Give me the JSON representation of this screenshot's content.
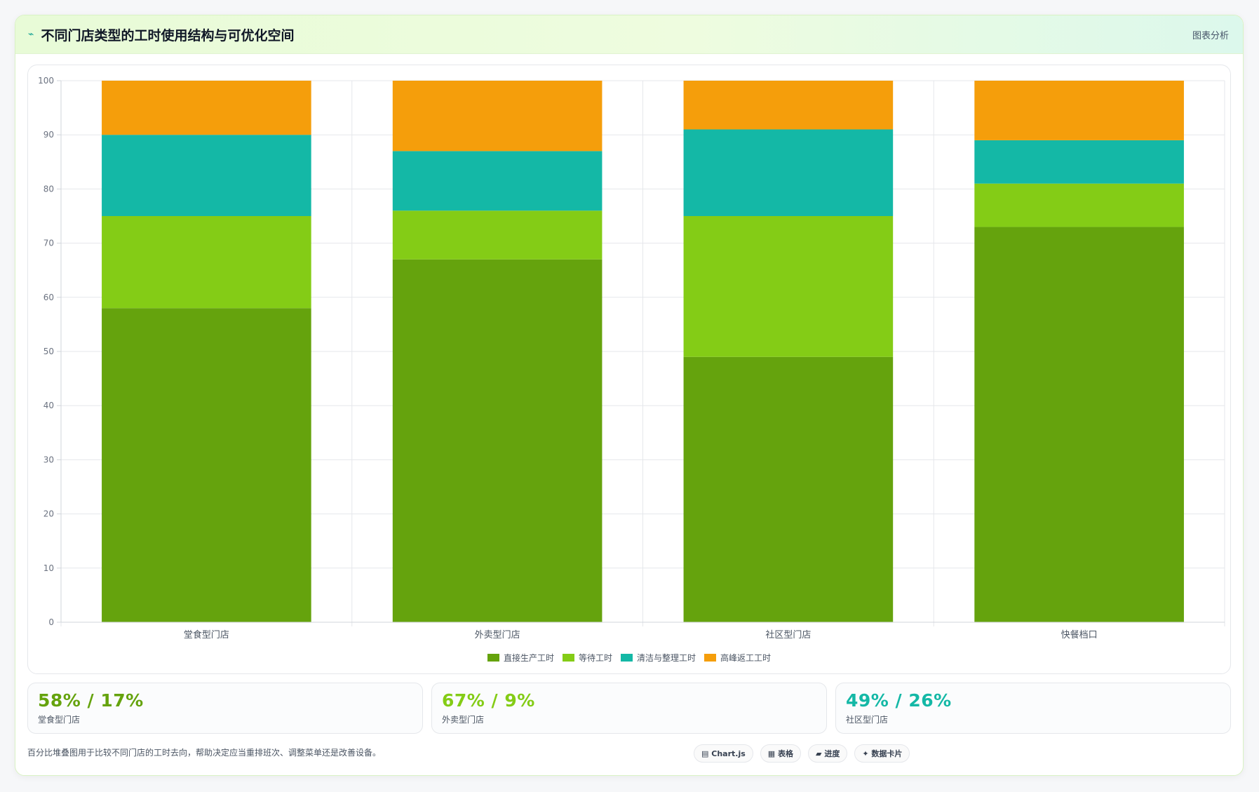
{
  "header": {
    "icon": "trend-icon",
    "icon_glyph": "⌁",
    "title": "不同门店类型的工时使用结构与可优化空间",
    "action_label": "图表分析"
  },
  "chart_data": {
    "type": "bar",
    "stacked": true,
    "categories": [
      "堂食型门店",
      "外卖型门店",
      "社区型门店",
      "快餐档口"
    ],
    "series": [
      {
        "name": "直接生产工时",
        "color": "#65a30d",
        "values": [
          58,
          67,
          49,
          73
        ]
      },
      {
        "name": "等待工时",
        "color": "#84cc16",
        "values": [
          17,
          9,
          26,
          8
        ]
      },
      {
        "name": "清洁与整理工时",
        "color": "#14b8a6",
        "values": [
          15,
          11,
          16,
          8
        ]
      },
      {
        "name": "高峰返工工时",
        "color": "#f59e0b",
        "values": [
          10,
          13,
          9,
          11
        ]
      }
    ],
    "ylim": [
      0,
      100
    ],
    "yticks": [
      0,
      10,
      20,
      30,
      40,
      50,
      60,
      70,
      80,
      90,
      100
    ],
    "grid": true,
    "legend_position": "bottom"
  },
  "stats": [
    {
      "value": "58% / 17%",
      "label": "堂食型门店",
      "color": "#65a30d"
    },
    {
      "value": "67% / 9%",
      "label": "外卖型门店",
      "color": "#84cc16"
    },
    {
      "value": "49% / 26%",
      "label": "社区型门店",
      "color": "#14b8a6"
    }
  ],
  "footer": {
    "note": "百分比堆叠图用于比较不同门店的工时去向，帮助决定应当重排班次、调整菜单还是改善设备。",
    "tags": [
      {
        "icon": "chart-icon",
        "glyph": "▤",
        "label": "Chart.js"
      },
      {
        "icon": "table-icon",
        "glyph": "▦",
        "label": "表格"
      },
      {
        "icon": "progress-icon",
        "glyph": "▰",
        "label": "进度"
      },
      {
        "icon": "card-icon",
        "glyph": "✦",
        "label": "数据卡片"
      }
    ]
  }
}
